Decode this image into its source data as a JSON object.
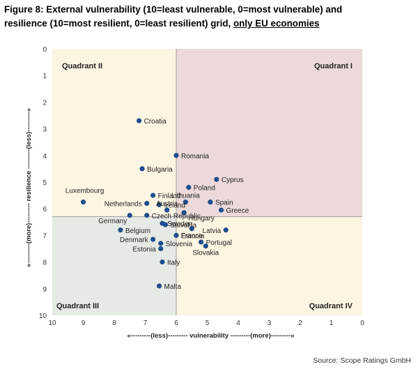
{
  "figure": {
    "title_line1": "Figure 8: External vulnerability (10=least vulnerable, 0=most vulnerable) and",
    "title_line2_pre": "resilience (10=most resilient, 0=least resilient) grid, ",
    "title_line2_ul": "only EU economies",
    "source": "Source: Scope Ratings GmbH"
  },
  "chart_data": {
    "type": "scatter",
    "xlabel": "«---------(less)---------   vulnerability ---------(more)---------»",
    "ylabel": "«---------(more)---------   resilience ---------(less)---------»",
    "xlim": [
      10,
      0
    ],
    "ylim": [
      0,
      10
    ],
    "x_reversed": true,
    "y_reversed": true,
    "x_ticks": [
      "10",
      "9",
      "8",
      "7",
      "6",
      "5",
      "4",
      "3",
      "2",
      "1",
      "0"
    ],
    "y_ticks": [
      "0",
      "1",
      "2",
      "3",
      "4",
      "5",
      "6",
      "7",
      "8",
      "9",
      "10"
    ],
    "grid": false,
    "dividers": {
      "x": 6.0,
      "y": 6.3
    },
    "quadrants": [
      {
        "label": "Quadrant I",
        "position": "top-right",
        "color": "#ecd9d9"
      },
      {
        "label": "Quadrant II",
        "position": "top-left",
        "color": "#fdf5e3"
      },
      {
        "label": "Quadrant III",
        "position": "bottom-left",
        "color": "#e5ebe4"
      },
      {
        "label": "Quadrant IV",
        "position": "bottom-right",
        "color": "#fdf5e3"
      }
    ],
    "marker_color": "#1f4e8c",
    "points": [
      {
        "label": "Croatia",
        "x": 7.2,
        "y": 2.7,
        "label_pos": "right"
      },
      {
        "label": "Romania",
        "x": 6.0,
        "y": 4.0,
        "label_pos": "right"
      },
      {
        "label": "Bulgaria",
        "x": 7.1,
        "y": 4.5,
        "label_pos": "right"
      },
      {
        "label": "Cyprus",
        "x": 4.7,
        "y": 4.9,
        "label_pos": "right"
      },
      {
        "label": "Poland",
        "x": 5.6,
        "y": 5.2,
        "label_pos": "right"
      },
      {
        "label": "Finland",
        "x": 6.75,
        "y": 5.5,
        "label_pos": "right"
      },
      {
        "label": "Luxembourg",
        "x": 9.0,
        "y": 5.75,
        "label_pos": "above-right"
      },
      {
        "label": "Netherlands",
        "x": 6.95,
        "y": 5.8,
        "label_pos": "left"
      },
      {
        "label": "Lithuania",
        "x": 5.7,
        "y": 5.75,
        "label_pos": "above"
      },
      {
        "label": "Spain",
        "x": 4.9,
        "y": 5.75,
        "label_pos": "right"
      },
      {
        "label": "Ireland",
        "x": 6.55,
        "y": 5.85,
        "label_pos": "right"
      },
      {
        "label": "Greece",
        "x": 4.55,
        "y": 6.05,
        "label_pos": "right"
      },
      {
        "label": "Austria",
        "x": 6.3,
        "y": 6.05,
        "label_pos": "above"
      },
      {
        "label": "Hungary",
        "x": 5.75,
        "y": 6.15,
        "label_pos": "below-right"
      },
      {
        "label": "Germany",
        "x": 7.5,
        "y": 6.25,
        "label_pos": "below-left"
      },
      {
        "label": "Czech Republic",
        "x": 6.95,
        "y": 6.25,
        "label_pos": "right"
      },
      {
        "label": "Sweden",
        "x": 6.45,
        "y": 6.55,
        "label_pos": "right"
      },
      {
        "label": "Slovakia",
        "x": 6.35,
        "y": 6.6,
        "label_pos": "right"
      },
      {
        "label": "Latvia",
        "x": 4.4,
        "y": 6.8,
        "label_pos": "left"
      },
      {
        "label": "Belgium",
        "x": 7.8,
        "y": 6.8,
        "label_pos": "right"
      },
      {
        "label": "Estonia",
        "x": 6.0,
        "y": 7.0,
        "label_pos": "right"
      },
      {
        "label": "France",
        "x": 5.5,
        "y": 6.75,
        "label_pos": "below"
      },
      {
        "label": "Denmark",
        "x": 6.75,
        "y": 7.15,
        "label_pos": "left"
      },
      {
        "label": "Slovenia",
        "x": 6.5,
        "y": 7.3,
        "label_pos": "right"
      },
      {
        "label": "Portugal",
        "x": 5.2,
        "y": 7.25,
        "label_pos": "right"
      },
      {
        "label": "Slovakia",
        "x": 5.05,
        "y": 7.4,
        "label_pos": "below"
      },
      {
        "label": "Estonia",
        "x": 6.5,
        "y": 7.5,
        "label_pos": "left"
      },
      {
        "label": "Italy",
        "x": 6.45,
        "y": 8.0,
        "label_pos": "right"
      },
      {
        "label": "Malta",
        "x": 6.55,
        "y": 8.9,
        "label_pos": "right"
      }
    ]
  }
}
